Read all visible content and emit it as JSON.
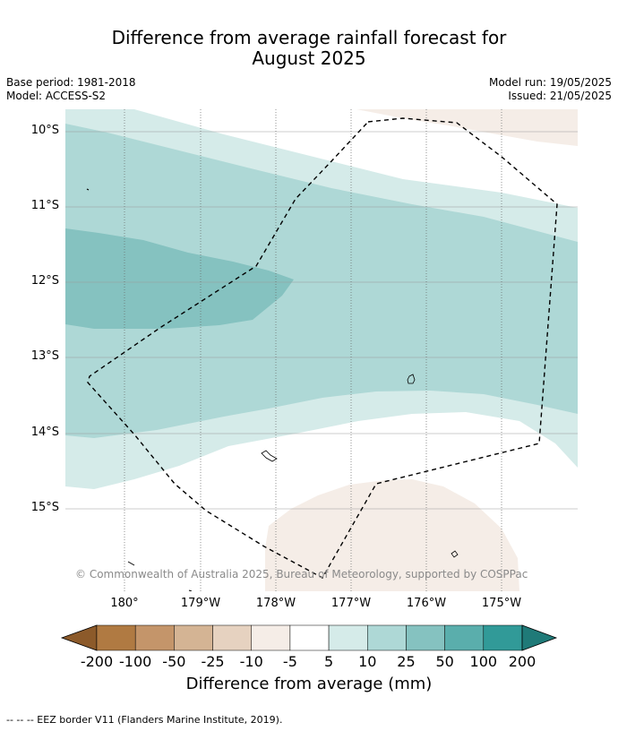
{
  "title": {
    "line1": "Difference from average rainfall forecast for",
    "line2": "August 2025"
  },
  "meta": {
    "base_period": "Base period: 1981-2018",
    "model": "Model: ACCESS-S2",
    "model_run": "Model run: 19/05/2025",
    "issued": "Issued: 21/05/2025"
  },
  "map": {
    "lat_labels": [
      "10°S",
      "11°S",
      "12°S",
      "13°S",
      "14°S",
      "15°S"
    ],
    "lon_labels": [
      "180°",
      "179°W",
      "178°W",
      "177°W",
      "176°W",
      "175°W"
    ],
    "copyright": "© Commonwealth of Australia 2025, Bureau of Meteorology, supported by COSPPac",
    "colors": {
      "ocean_white": "#ffffff",
      "light_tan": "#f5ede7",
      "light_teal": "#d5ebe9",
      "mid_teal": "#aed8d6",
      "dark_teal": "#85c2c0",
      "eez_border": "#000000",
      "gridline": "#808080"
    }
  },
  "colorbar": {
    "label": "Difference from average (mm)",
    "ticks": [
      "-200",
      "-100",
      "-50",
      "-25",
      "-10",
      "-5",
      "5",
      "10",
      "25",
      "50",
      "100",
      "200"
    ],
    "colors": [
      "#8c5a2a",
      "#b07a42",
      "#c4956a",
      "#d4b494",
      "#e6d2c0",
      "#f5ede7",
      "#ffffff",
      "#d5ebe9",
      "#aed8d6",
      "#85c2c0",
      "#5aaeac",
      "#319a98",
      "#1f7a78"
    ]
  },
  "footer": "--  --  -- EEZ border V11 (Flanders Marine Institute, 2019)."
}
